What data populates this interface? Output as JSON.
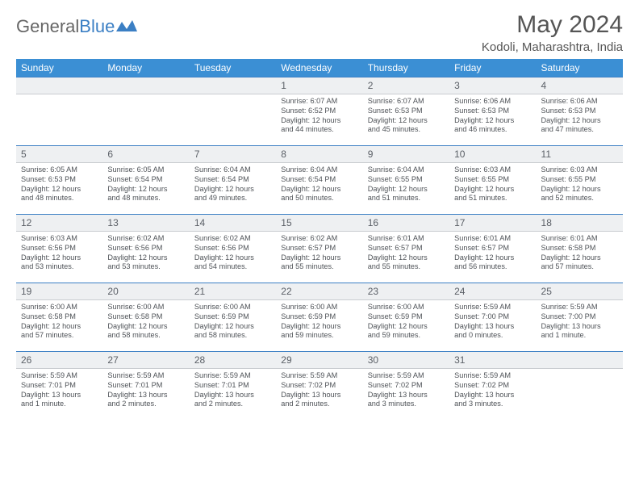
{
  "header": {
    "logo_text_1": "General",
    "logo_text_2": "Blue",
    "month_title": "May 2024",
    "location": "Kodoli, Maharashtra, India"
  },
  "colors": {
    "header_bar": "#3b8fd4",
    "row_divider": "#3b7fc4",
    "daynum_bg": "#eef0f2",
    "text": "#4f5358"
  },
  "day_names": [
    "Sunday",
    "Monday",
    "Tuesday",
    "Wednesday",
    "Thursday",
    "Friday",
    "Saturday"
  ],
  "weeks": [
    [
      {
        "num": "",
        "lines": []
      },
      {
        "num": "",
        "lines": []
      },
      {
        "num": "",
        "lines": []
      },
      {
        "num": "1",
        "lines": [
          "Sunrise: 6:07 AM",
          "Sunset: 6:52 PM",
          "Daylight: 12 hours",
          "and 44 minutes."
        ]
      },
      {
        "num": "2",
        "lines": [
          "Sunrise: 6:07 AM",
          "Sunset: 6:53 PM",
          "Daylight: 12 hours",
          "and 45 minutes."
        ]
      },
      {
        "num": "3",
        "lines": [
          "Sunrise: 6:06 AM",
          "Sunset: 6:53 PM",
          "Daylight: 12 hours",
          "and 46 minutes."
        ]
      },
      {
        "num": "4",
        "lines": [
          "Sunrise: 6:06 AM",
          "Sunset: 6:53 PM",
          "Daylight: 12 hours",
          "and 47 minutes."
        ]
      }
    ],
    [
      {
        "num": "5",
        "lines": [
          "Sunrise: 6:05 AM",
          "Sunset: 6:53 PM",
          "Daylight: 12 hours",
          "and 48 minutes."
        ]
      },
      {
        "num": "6",
        "lines": [
          "Sunrise: 6:05 AM",
          "Sunset: 6:54 PM",
          "Daylight: 12 hours",
          "and 48 minutes."
        ]
      },
      {
        "num": "7",
        "lines": [
          "Sunrise: 6:04 AM",
          "Sunset: 6:54 PM",
          "Daylight: 12 hours",
          "and 49 minutes."
        ]
      },
      {
        "num": "8",
        "lines": [
          "Sunrise: 6:04 AM",
          "Sunset: 6:54 PM",
          "Daylight: 12 hours",
          "and 50 minutes."
        ]
      },
      {
        "num": "9",
        "lines": [
          "Sunrise: 6:04 AM",
          "Sunset: 6:55 PM",
          "Daylight: 12 hours",
          "and 51 minutes."
        ]
      },
      {
        "num": "10",
        "lines": [
          "Sunrise: 6:03 AM",
          "Sunset: 6:55 PM",
          "Daylight: 12 hours",
          "and 51 minutes."
        ]
      },
      {
        "num": "11",
        "lines": [
          "Sunrise: 6:03 AM",
          "Sunset: 6:55 PM",
          "Daylight: 12 hours",
          "and 52 minutes."
        ]
      }
    ],
    [
      {
        "num": "12",
        "lines": [
          "Sunrise: 6:03 AM",
          "Sunset: 6:56 PM",
          "Daylight: 12 hours",
          "and 53 minutes."
        ]
      },
      {
        "num": "13",
        "lines": [
          "Sunrise: 6:02 AM",
          "Sunset: 6:56 PM",
          "Daylight: 12 hours",
          "and 53 minutes."
        ]
      },
      {
        "num": "14",
        "lines": [
          "Sunrise: 6:02 AM",
          "Sunset: 6:56 PM",
          "Daylight: 12 hours",
          "and 54 minutes."
        ]
      },
      {
        "num": "15",
        "lines": [
          "Sunrise: 6:02 AM",
          "Sunset: 6:57 PM",
          "Daylight: 12 hours",
          "and 55 minutes."
        ]
      },
      {
        "num": "16",
        "lines": [
          "Sunrise: 6:01 AM",
          "Sunset: 6:57 PM",
          "Daylight: 12 hours",
          "and 55 minutes."
        ]
      },
      {
        "num": "17",
        "lines": [
          "Sunrise: 6:01 AM",
          "Sunset: 6:57 PM",
          "Daylight: 12 hours",
          "and 56 minutes."
        ]
      },
      {
        "num": "18",
        "lines": [
          "Sunrise: 6:01 AM",
          "Sunset: 6:58 PM",
          "Daylight: 12 hours",
          "and 57 minutes."
        ]
      }
    ],
    [
      {
        "num": "19",
        "lines": [
          "Sunrise: 6:00 AM",
          "Sunset: 6:58 PM",
          "Daylight: 12 hours",
          "and 57 minutes."
        ]
      },
      {
        "num": "20",
        "lines": [
          "Sunrise: 6:00 AM",
          "Sunset: 6:58 PM",
          "Daylight: 12 hours",
          "and 58 minutes."
        ]
      },
      {
        "num": "21",
        "lines": [
          "Sunrise: 6:00 AM",
          "Sunset: 6:59 PM",
          "Daylight: 12 hours",
          "and 58 minutes."
        ]
      },
      {
        "num": "22",
        "lines": [
          "Sunrise: 6:00 AM",
          "Sunset: 6:59 PM",
          "Daylight: 12 hours",
          "and 59 minutes."
        ]
      },
      {
        "num": "23",
        "lines": [
          "Sunrise: 6:00 AM",
          "Sunset: 6:59 PM",
          "Daylight: 12 hours",
          "and 59 minutes."
        ]
      },
      {
        "num": "24",
        "lines": [
          "Sunrise: 5:59 AM",
          "Sunset: 7:00 PM",
          "Daylight: 13 hours",
          "and 0 minutes."
        ]
      },
      {
        "num": "25",
        "lines": [
          "Sunrise: 5:59 AM",
          "Sunset: 7:00 PM",
          "Daylight: 13 hours",
          "and 1 minute."
        ]
      }
    ],
    [
      {
        "num": "26",
        "lines": [
          "Sunrise: 5:59 AM",
          "Sunset: 7:01 PM",
          "Daylight: 13 hours",
          "and 1 minute."
        ]
      },
      {
        "num": "27",
        "lines": [
          "Sunrise: 5:59 AM",
          "Sunset: 7:01 PM",
          "Daylight: 13 hours",
          "and 2 minutes."
        ]
      },
      {
        "num": "28",
        "lines": [
          "Sunrise: 5:59 AM",
          "Sunset: 7:01 PM",
          "Daylight: 13 hours",
          "and 2 minutes."
        ]
      },
      {
        "num": "29",
        "lines": [
          "Sunrise: 5:59 AM",
          "Sunset: 7:02 PM",
          "Daylight: 13 hours",
          "and 2 minutes."
        ]
      },
      {
        "num": "30",
        "lines": [
          "Sunrise: 5:59 AM",
          "Sunset: 7:02 PM",
          "Daylight: 13 hours",
          "and 3 minutes."
        ]
      },
      {
        "num": "31",
        "lines": [
          "Sunrise: 5:59 AM",
          "Sunset: 7:02 PM",
          "Daylight: 13 hours",
          "and 3 minutes."
        ]
      },
      {
        "num": "",
        "lines": []
      }
    ]
  ]
}
